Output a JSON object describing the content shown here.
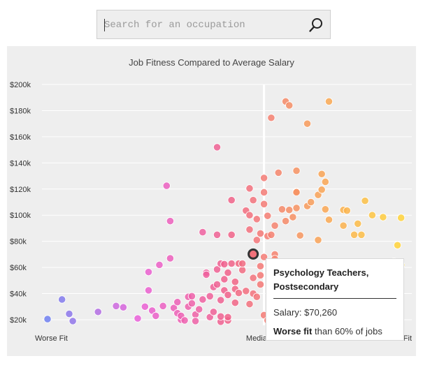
{
  "search": {
    "placeholder": "Search for an occupation",
    "icon": "search-icon"
  },
  "chart_data": {
    "type": "scatter",
    "title": "Job Fitness Compared to Average Salary",
    "xlabel": "",
    "ylabel": "",
    "x_tick_labels": [
      "Worse Fit",
      "Median Fit",
      "Better Fit"
    ],
    "y_ticks": [
      "$20k",
      "$40k",
      "$60k",
      "$80k",
      "$100k",
      "$120k",
      "$140k",
      "$160k",
      "$180k",
      "$200k"
    ],
    "xlim": [
      0,
      100
    ],
    "ylim": [
      20000,
      200000
    ],
    "median_x": 60,
    "grid": true,
    "colors": {
      "worse": "#6f7ff0",
      "mid": "#f0608a",
      "better": "#ffd23a",
      "median_line": "#ffffff"
    },
    "points": [
      [
        0,
        20500
      ],
      [
        4,
        35500
      ],
      [
        6,
        24500
      ],
      [
        7,
        19000
      ],
      [
        14,
        26000
      ],
      [
        19,
        30500
      ],
      [
        21,
        29500
      ],
      [
        25,
        21000
      ],
      [
        27,
        30000
      ],
      [
        28,
        42500
      ],
      [
        28,
        56500
      ],
      [
        29,
        27000
      ],
      [
        30,
        23000
      ],
      [
        31,
        62000
      ],
      [
        32,
        30500
      ],
      [
        33,
        122500
      ],
      [
        34,
        95500
      ],
      [
        34,
        67000
      ],
      [
        35,
        29000
      ],
      [
        36,
        25000
      ],
      [
        36,
        33500
      ],
      [
        37,
        20000
      ],
      [
        37,
        23000
      ],
      [
        38,
        19500
      ],
      [
        39,
        30000
      ],
      [
        39,
        37500
      ],
      [
        40,
        38000
      ],
      [
        40,
        32500
      ],
      [
        41,
        24000
      ],
      [
        41,
        19000
      ],
      [
        42,
        28000
      ],
      [
        43,
        35500
      ],
      [
        43,
        87000
      ],
      [
        44,
        56000
      ],
      [
        44,
        54500
      ],
      [
        45,
        22000
      ],
      [
        45,
        38000
      ],
      [
        46,
        26000
      ],
      [
        46,
        45000
      ],
      [
        47,
        58500
      ],
      [
        47,
        47000
      ],
      [
        47,
        152000
      ],
      [
        47,
        85000
      ],
      [
        48,
        63000
      ],
      [
        48,
        35000
      ],
      [
        48,
        18500
      ],
      [
        48,
        22500
      ],
      [
        49,
        62500
      ],
      [
        49,
        51000
      ],
      [
        49,
        42500
      ],
      [
        50,
        56000
      ],
      [
        50,
        39000
      ],
      [
        50,
        19500
      ],
      [
        50,
        22000
      ],
      [
        51,
        63000
      ],
      [
        51,
        111500
      ],
      [
        51,
        85000
      ],
      [
        52,
        49000
      ],
      [
        52,
        33000
      ],
      [
        52,
        43500
      ],
      [
        53,
        40500
      ],
      [
        53,
        63000
      ],
      [
        54,
        58000
      ],
      [
        54,
        63000
      ],
      [
        55,
        42000
      ],
      [
        55,
        103500
      ],
      [
        56,
        120500
      ],
      [
        56,
        100000
      ],
      [
        56,
        89000
      ],
      [
        56,
        32000
      ],
      [
        57,
        52000
      ],
      [
        57,
        111500
      ],
      [
        57,
        40000
      ],
      [
        58,
        81000
      ],
      [
        58,
        97000
      ],
      [
        58,
        37500
      ],
      [
        59,
        47000
      ],
      [
        59,
        61000
      ],
      [
        59,
        54000
      ],
      [
        59,
        86000
      ],
      [
        60,
        128500
      ],
      [
        60,
        117500
      ],
      [
        60,
        108500
      ],
      [
        60,
        68000
      ],
      [
        60,
        23500
      ],
      [
        61,
        19500
      ],
      [
        61,
        84000
      ],
      [
        61,
        99500
      ],
      [
        62,
        85000
      ],
      [
        62,
        21500
      ],
      [
        62,
        174500
      ],
      [
        63,
        92000
      ],
      [
        63,
        70000
      ],
      [
        63,
        66500
      ],
      [
        64,
        132500
      ],
      [
        64,
        36000
      ],
      [
        65,
        104500
      ],
      [
        65,
        18500
      ],
      [
        66,
        187000
      ],
      [
        66,
        95500
      ],
      [
        67,
        184000
      ],
      [
        67,
        104000
      ],
      [
        68,
        98500
      ],
      [
        68,
        29000
      ],
      [
        69,
        134000
      ],
      [
        69,
        105500
      ],
      [
        69,
        118000
      ],
      [
        69,
        117500
      ],
      [
        70,
        28000
      ],
      [
        70,
        84500
      ],
      [
        70,
        40000
      ],
      [
        71,
        43500
      ],
      [
        71,
        20000
      ],
      [
        72,
        19000
      ],
      [
        72,
        170000
      ],
      [
        72,
        107000
      ],
      [
        73,
        110000
      ],
      [
        74,
        32000
      ],
      [
        75,
        115500
      ],
      [
        75,
        81000
      ],
      [
        76,
        36000
      ],
      [
        76,
        131500
      ],
      [
        76,
        119500
      ],
      [
        77,
        104500
      ],
      [
        77,
        125500
      ],
      [
        78,
        187000
      ],
      [
        78,
        96500
      ],
      [
        80,
        64000
      ],
      [
        81,
        31000
      ],
      [
        81,
        59500
      ],
      [
        82,
        104000
      ],
      [
        82,
        92000
      ],
      [
        83,
        28500
      ],
      [
        83,
        103500
      ],
      [
        84,
        62000
      ],
      [
        85,
        85000
      ],
      [
        86,
        93500
      ],
      [
        87,
        85000
      ],
      [
        88,
        111000
      ],
      [
        89,
        31500
      ],
      [
        90,
        100000
      ],
      [
        90,
        61000
      ],
      [
        93,
        98500
      ],
      [
        95,
        36500
      ],
      [
        96,
        64500
      ],
      [
        97,
        77000
      ],
      [
        98,
        62000
      ],
      [
        98,
        98000
      ]
    ],
    "highlight": {
      "name": "Psychology Teachers, Postsecondary",
      "x": 57,
      "y": 70260,
      "salary_label": "Salary: $70,260",
      "fit_label_bold": "Worse fit",
      "fit_label_rest": " than 60% of jobs"
    }
  }
}
